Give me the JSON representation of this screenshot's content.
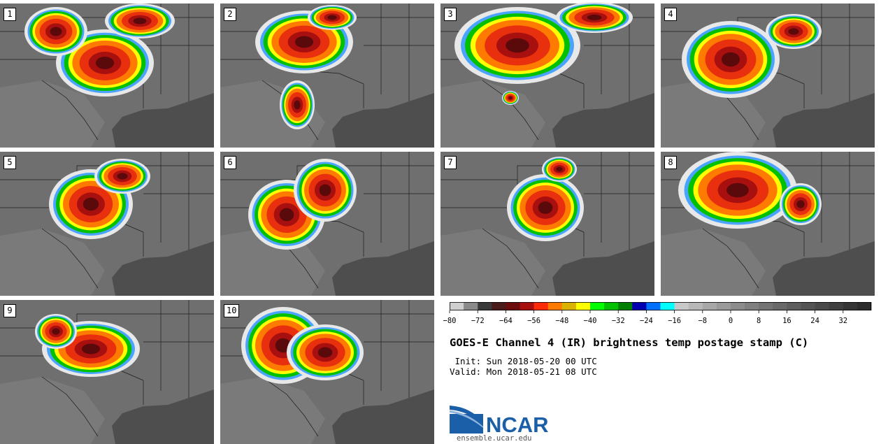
{
  "panels": [
    {
      "label": "1"
    },
    {
      "label": "2"
    },
    {
      "label": "3"
    },
    {
      "label": "4"
    },
    {
      "label": "5"
    },
    {
      "label": "6"
    },
    {
      "label": "7"
    },
    {
      "label": "8"
    },
    {
      "label": "9"
    },
    {
      "label": "10"
    }
  ],
  "colorbar": {
    "colors": [
      "#cfcfcf",
      "#8a8a8a",
      "#3a3a3a",
      "#4a1b1b",
      "#6b0d0d",
      "#a80f0f",
      "#ff2a0a",
      "#ff7a00",
      "#d9b300",
      "#ffff00",
      "#00ff00",
      "#00c000",
      "#008000",
      "#0000b0",
      "#0070ff",
      "#00ffff",
      "#c8c8c8",
      "#b8b8b8",
      "#a8a8a8",
      "#9a9a9a",
      "#8c8c8c",
      "#808080",
      "#747474",
      "#696969",
      "#5e5e5e",
      "#545454",
      "#4a4a4a",
      "#404040",
      "#363636",
      "#2c2c2c"
    ],
    "ticks": [
      "−80",
      "−72",
      "−64",
      "−56",
      "−48",
      "−40",
      "−32",
      "−24",
      "−16",
      "−8",
      "0",
      "8",
      "16",
      "24",
      "32"
    ]
  },
  "title": "GOES-E Channel 4 (IR) brightness temp postage stamp (C)",
  "init_line": " Init: Sun 2018-05-20 00 UTC",
  "valid_line": "Valid: Mon 2018-05-21 08 UTC",
  "logo": {
    "text": "NCAR",
    "url": "ensemble.ucar.edu",
    "color": "#1a5fa8"
  }
}
